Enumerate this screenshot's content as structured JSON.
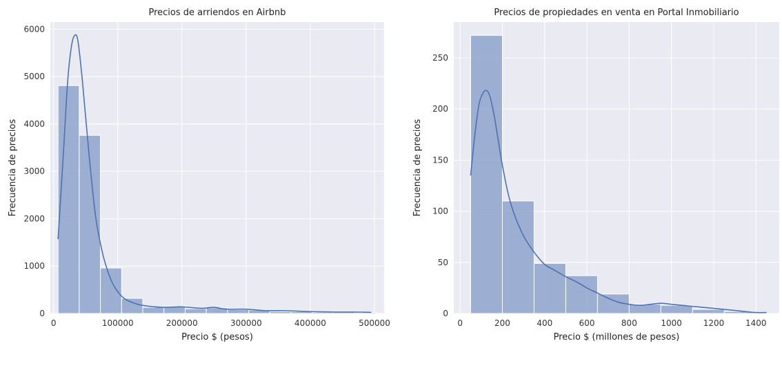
{
  "chart_data": [
    {
      "type": "bar",
      "subtype": "histogram-with-kde",
      "title": "Precios de arriendos en Airbnb",
      "xlabel": "Precio $ (pesos)",
      "ylabel": "Frecuencia de precios",
      "xlim": [
        -5000,
        515000
      ],
      "ylim": [
        0,
        6150
      ],
      "xticks": [
        0,
        100000,
        200000,
        300000,
        400000,
        500000
      ],
      "yticks": [
        0,
        1000,
        2000,
        3000,
        4000,
        5000,
        6000
      ],
      "grid": true,
      "bins": [
        {
          "x0": 7000,
          "x1": 40000,
          "count": 4810
        },
        {
          "x0": 40000,
          "x1": 73000,
          "count": 3760
        },
        {
          "x0": 73000,
          "x1": 106000,
          "count": 960
        },
        {
          "x0": 106000,
          "x1": 139000,
          "count": 320
        },
        {
          "x0": 139000,
          "x1": 172000,
          "count": 130
        },
        {
          "x0": 172000,
          "x1": 205000,
          "count": 140
        },
        {
          "x0": 205000,
          "x1": 238000,
          "count": 100
        },
        {
          "x0": 238000,
          "x1": 271000,
          "count": 120
        },
        {
          "x0": 271000,
          "x1": 304000,
          "count": 80
        },
        {
          "x0": 304000,
          "x1": 337000,
          "count": 70
        },
        {
          "x0": 337000,
          "x1": 370000,
          "count": 40
        },
        {
          "x0": 370000,
          "x1": 403000,
          "count": 40
        },
        {
          "x0": 403000,
          "x1": 436000,
          "count": 25
        },
        {
          "x0": 436000,
          "x1": 469000,
          "count": 25
        },
        {
          "x0": 469000,
          "x1": 502000,
          "count": 20
        }
      ],
      "kde": {
        "x": [
          7000,
          15000,
          22000,
          28000,
          33000,
          38000,
          45000,
          55000,
          65000,
          75000,
          85000,
          95000,
          110000,
          130000,
          150000,
          175000,
          200000,
          230000,
          250000,
          270000,
          300000,
          330000,
          360000,
          400000,
          440000,
          470000,
          495000
        ],
        "y": [
          1570,
          3300,
          4900,
          5650,
          5870,
          5750,
          4900,
          3400,
          2100,
          1350,
          870,
          560,
          320,
          200,
          150,
          130,
          140,
          110,
          130,
          90,
          90,
          60,
          60,
          40,
          30,
          30,
          25
        ]
      }
    },
    {
      "type": "bar",
      "subtype": "histogram-with-kde",
      "title": "Precios de propiedades en venta en Portal Inmobiliario",
      "xlabel": "Precio $ (millones de pesos)",
      "ylabel": "Frecuencia de precios",
      "xlim": [
        -30,
        1510
      ],
      "ylim": [
        0,
        285
      ],
      "xticks": [
        0,
        200,
        400,
        600,
        800,
        1000,
        1200,
        1400
      ],
      "yticks": [
        0,
        50,
        100,
        150,
        200,
        250
      ],
      "grid": true,
      "bins": [
        {
          "x0": 50,
          "x1": 200,
          "count": 272
        },
        {
          "x0": 200,
          "x1": 350,
          "count": 110
        },
        {
          "x0": 350,
          "x1": 500,
          "count": 49
        },
        {
          "x0": 500,
          "x1": 650,
          "count": 37
        },
        {
          "x0": 650,
          "x1": 800,
          "count": 19
        },
        {
          "x0": 800,
          "x1": 950,
          "count": 9
        },
        {
          "x0": 950,
          "x1": 1100,
          "count": 8
        },
        {
          "x0": 1100,
          "x1": 1250,
          "count": 4
        },
        {
          "x0": 1250,
          "x1": 1400,
          "count": 2
        },
        {
          "x0": 1400,
          "x1": 1450,
          "count": 1
        }
      ],
      "kde": {
        "x": [
          50,
          70,
          90,
          110,
          125,
          140,
          160,
          180,
          200,
          230,
          260,
          300,
          350,
          400,
          450,
          500,
          550,
          600,
          650,
          700,
          750,
          800,
          850,
          900,
          950,
          1000,
          1100,
          1200,
          1300,
          1400,
          1450
        ],
        "y": [
          135,
          175,
          205,
          216,
          218,
          213,
          195,
          170,
          145,
          115,
          95,
          76,
          60,
          48,
          42,
          36,
          31,
          25,
          20,
          15,
          11,
          9,
          8,
          9,
          10,
          9,
          7,
          5,
          3,
          1,
          1
        ]
      }
    }
  ]
}
